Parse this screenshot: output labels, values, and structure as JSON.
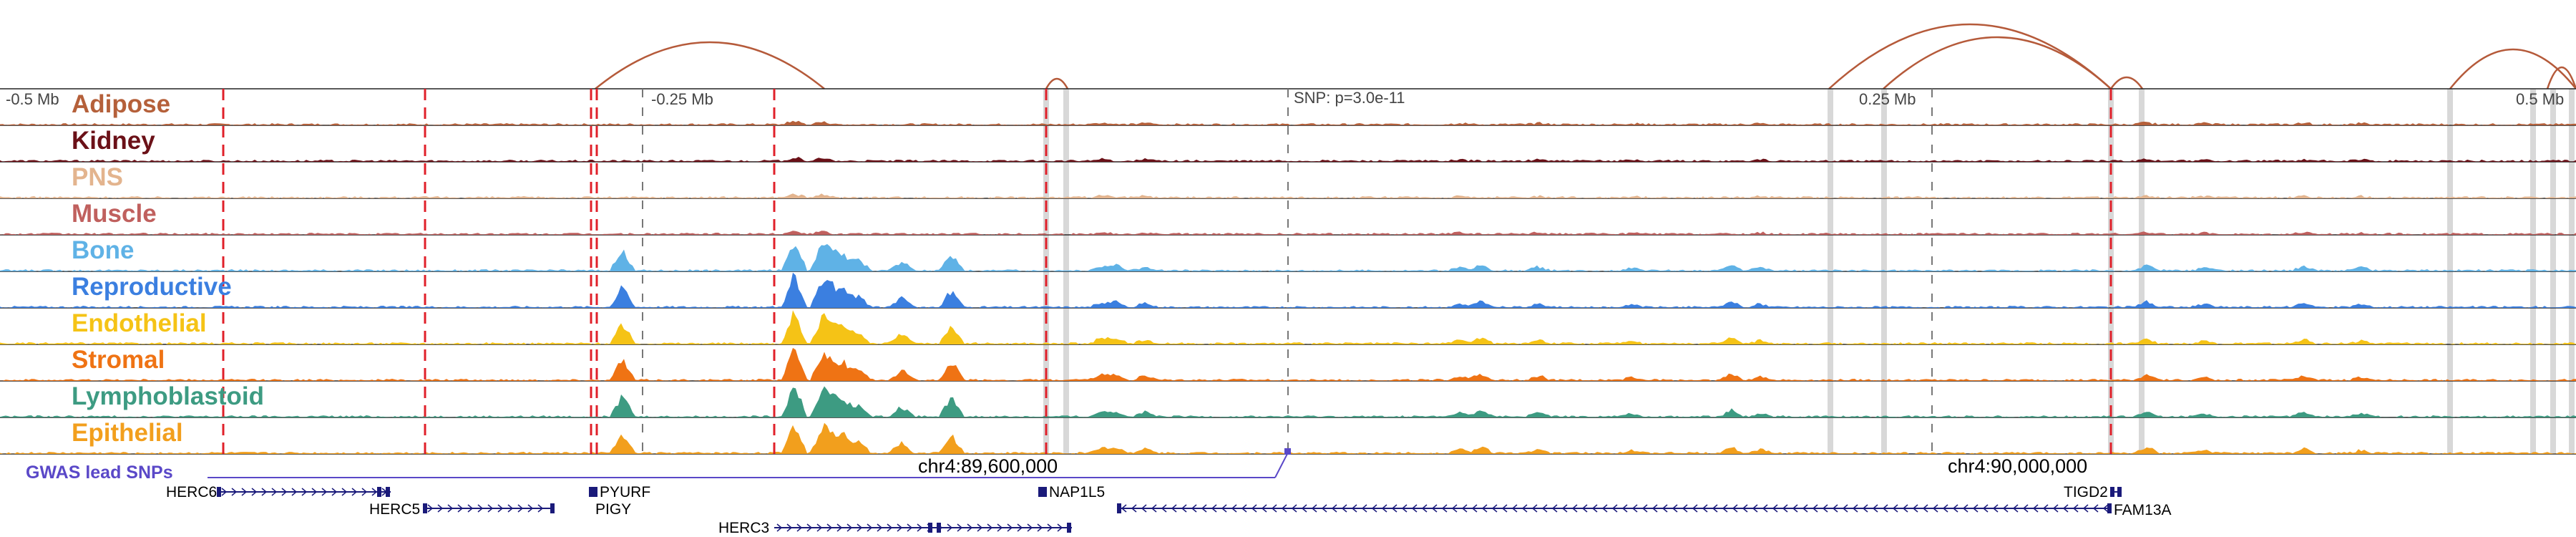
{
  "scale_bar": {
    "labels": [
      "-0.5 Mb",
      "-0.25 Mb",
      "0.25 Mb",
      "0.5 Mb"
    ]
  },
  "lead_snp": {
    "text": "SNP: p=3.0e-11"
  },
  "coordinates": [
    "chr4:89,600,000",
    "chr4:90,000,000"
  ],
  "gwas_track": {
    "label": "GWAS lead SNPs",
    "color": "#5a48c8"
  },
  "tracks": [
    {
      "name": "Adipose",
      "color": "#b5603a"
    },
    {
      "name": "Kidney",
      "color": "#6b1118"
    },
    {
      "name": "PNS",
      "color": "#e3b48e"
    },
    {
      "name": "Muscle",
      "color": "#c0605e"
    },
    {
      "name": "Bone",
      "color": "#5fb2e6"
    },
    {
      "name": "Reproductive",
      "color": "#3b7fe0"
    },
    {
      "name": "Endothelial",
      "color": "#f5c316"
    },
    {
      "name": "Stromal",
      "color": "#ef7314"
    },
    {
      "name": "Lymphoblastoid",
      "color": "#3d9b82"
    },
    {
      "name": "Epithelial",
      "color": "#f29f1d"
    }
  ],
  "genes": [
    "HERC6",
    "HERC5",
    "PYURF",
    "PIGY",
    "HERC3",
    "NAP1L5",
    "TIGD2",
    "FAM13A"
  ],
  "colors": {
    "loop_arc": "#b55a3a",
    "peak_marker": "#e0202a",
    "highlight": "#d8d8d8",
    "gene_model": "#1a1a7a"
  }
}
